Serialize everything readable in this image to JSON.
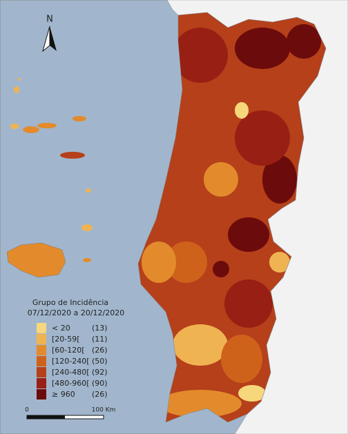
{
  "map": {
    "north_label": "N",
    "legend": {
      "title": "Grupo de Incidência",
      "period": "07/12/2020  a 20/12/2020",
      "items": [
        {
          "label": "< 20",
          "count": "(13)",
          "color": "#f7d77c"
        },
        {
          "label": "[20-59[",
          "count": "(11)",
          "color": "#f0b352"
        },
        {
          "label": "[60-120[",
          "count": "(26)",
          "color": "#e38b2c"
        },
        {
          "label": "[120-240[",
          "count": "(50)",
          "color": "#cf621b"
        },
        {
          "label": "[240-480[",
          "count": "(92)",
          "color": "#b5401a"
        },
        {
          "label": "[480-960[",
          "count": "(90)",
          "color": "#981f13"
        },
        {
          "label": "≥ 960",
          "count": "(26)",
          "color": "#6c0b0b"
        }
      ]
    },
    "scale_bar": {
      "start_label": "0",
      "end_label": "100 Km"
    }
  }
}
